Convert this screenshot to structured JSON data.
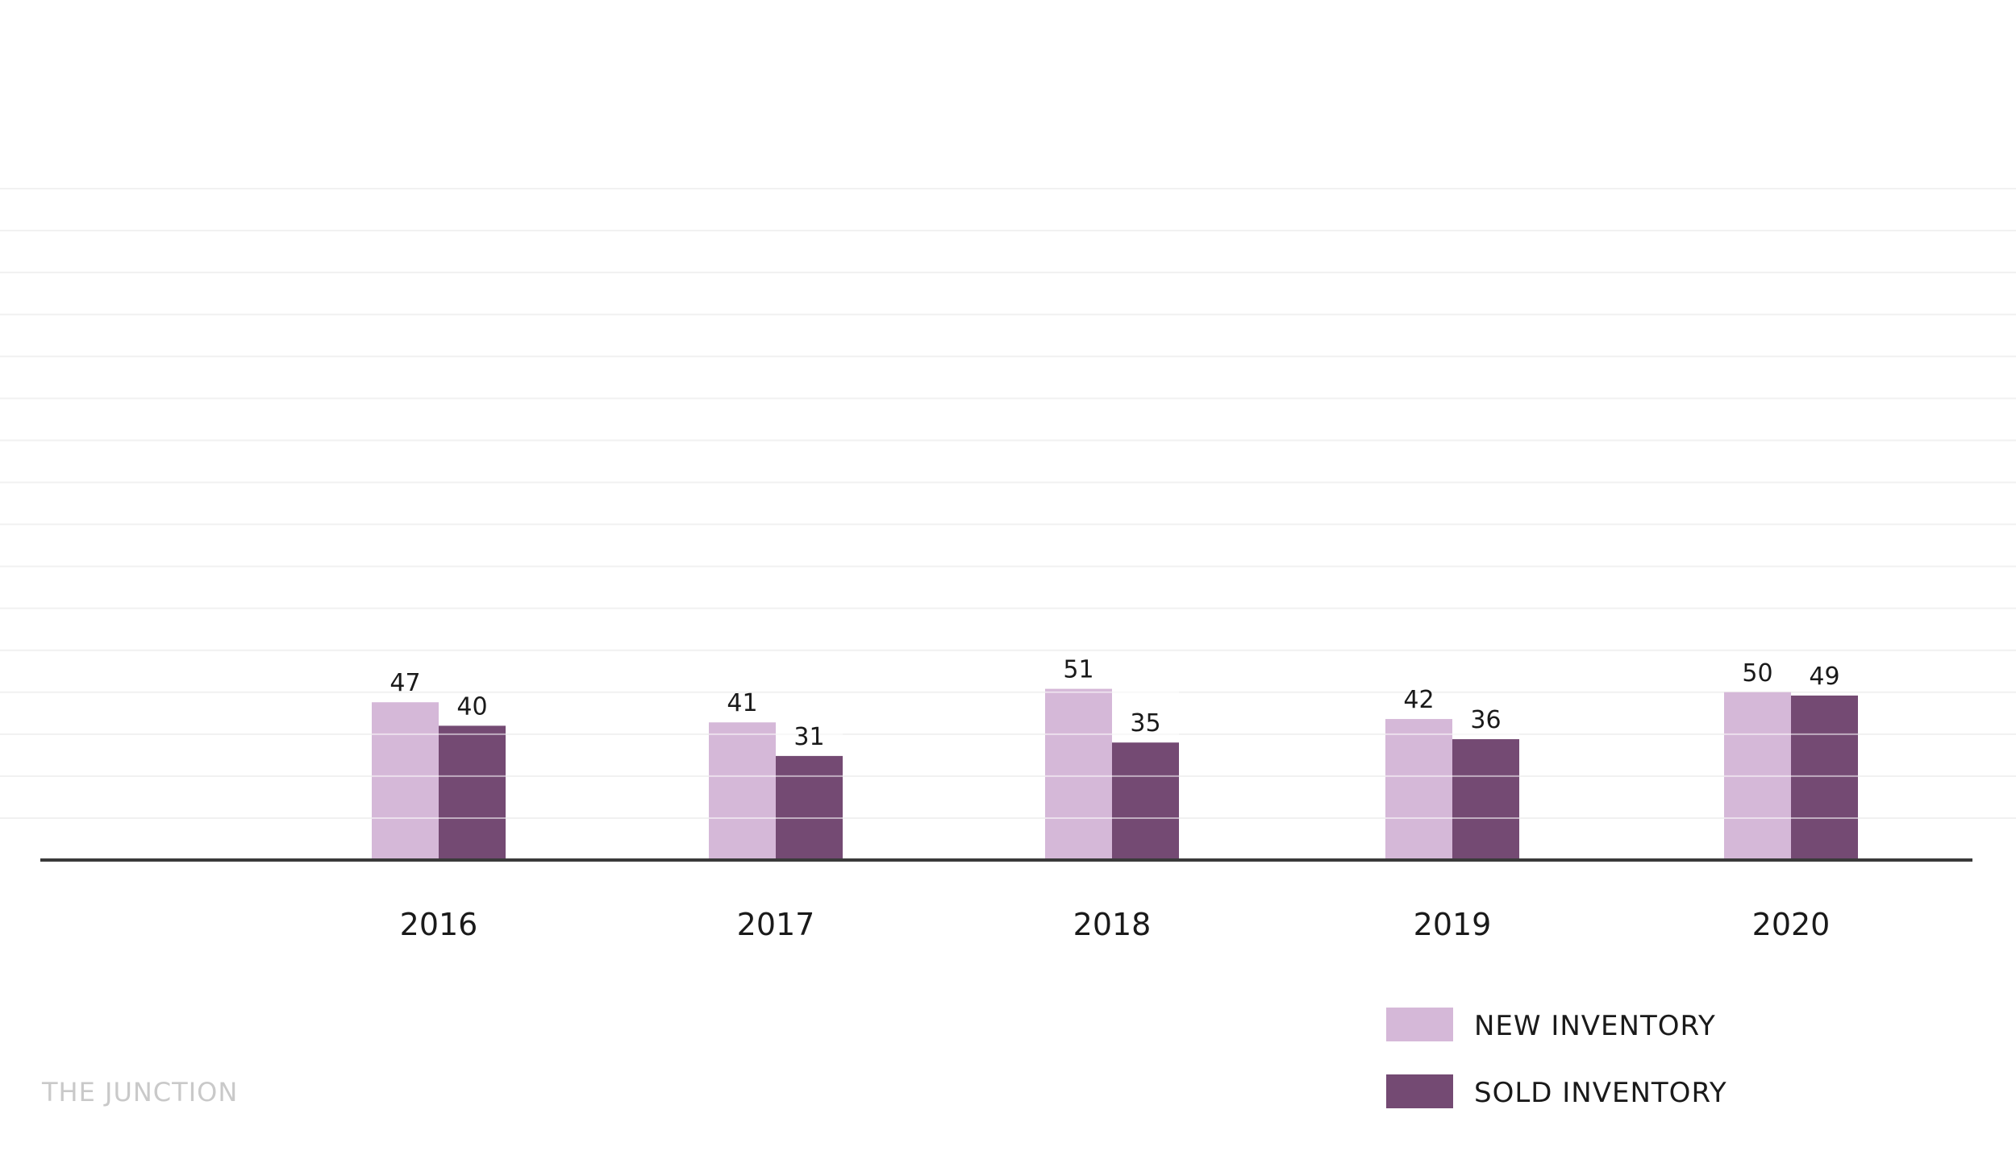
{
  "brand": {
    "label": "THE JUNCTION"
  },
  "chart_data": {
    "type": "bar",
    "title": "",
    "xlabel": "",
    "ylabel": "",
    "categories": [
      "2016",
      "2017",
      "2018",
      "2019",
      "2020"
    ],
    "series": [
      {
        "name": "NEW INVENTORY",
        "color": "#d5b8d8",
        "values": [
          47,
          41,
          51,
          42,
          50
        ]
      },
      {
        "name": "SOLD INVENTORY",
        "color": "#744a73",
        "values": [
          40,
          31,
          35,
          36,
          49
        ]
      }
    ],
    "ylim": [
      0,
      200
    ],
    "grid": true,
    "data_labels": true,
    "legend_position": "bottom-right"
  }
}
